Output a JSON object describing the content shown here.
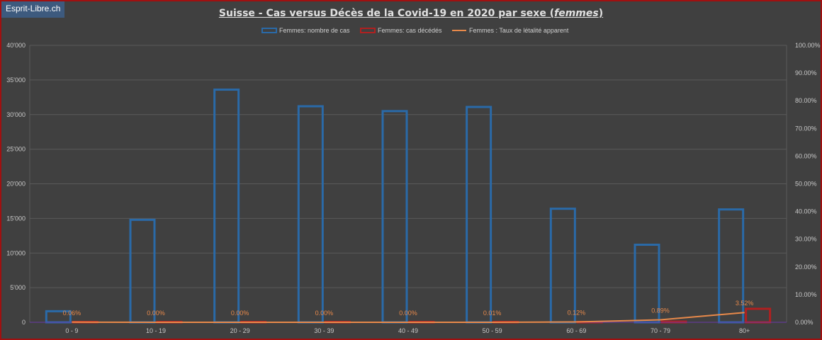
{
  "watermark": "Esprit-Libre.ch",
  "title_main": "Suisse - Cas versus Décès de la Covid-19 en 2020 par sexe (",
  "title_italic": "femmes",
  "title_end": ")",
  "colors": {
    "cases": "#2a6aa8",
    "deaths": "#b02020",
    "rate": "#e8894a",
    "grid": "#5a5a5a",
    "background": "#404040"
  },
  "chart_data": {
    "type": "bar",
    "categories": [
      "0 - 9",
      "10 - 19",
      "20 - 29",
      "30 - 39",
      "40 - 49",
      "50 - 59",
      "60 - 69",
      "70 - 79",
      "80+"
    ],
    "series": [
      {
        "name": "Femmes: nombre de cas",
        "type": "bar",
        "axis": "left",
        "values": [
          1600,
          14800,
          33600,
          31200,
          30500,
          31100,
          16400,
          11200,
          16300
        ]
      },
      {
        "name": "Femmes: cas décédés",
        "type": "bar",
        "axis": "left",
        "values": [
          1,
          0,
          1,
          1,
          1,
          3,
          20,
          100,
          1950
        ]
      },
      {
        "name": "Femmes : Taux de létalité apparent",
        "type": "line",
        "axis": "right",
        "values": [
          0.0006,
          0.0,
          0.0,
          0.0,
          0.0,
          0.0001,
          0.0012,
          0.0089,
          0.0352
        ],
        "labels": [
          "0.06%",
          "0.00%",
          "0.00%",
          "0.00%",
          "0.00%",
          "0.01%",
          "0.12%",
          "0.89%",
          "3.52%"
        ]
      }
    ],
    "y_left": {
      "min": 0,
      "max": 40000,
      "ticks": [
        "0",
        "5'000",
        "10'000",
        "15'000",
        "20'000",
        "25'000",
        "30'000",
        "35'000",
        "40'000"
      ]
    },
    "y_right": {
      "min": 0,
      "max": 1,
      "ticks": [
        "0.00%",
        "10.00%",
        "20.00%",
        "30.00%",
        "40.00%",
        "50.00%",
        "60.00%",
        "70.00%",
        "80.00%",
        "90.00%",
        "100.00%"
      ]
    },
    "grid": true,
    "legend_position": "top-center"
  }
}
